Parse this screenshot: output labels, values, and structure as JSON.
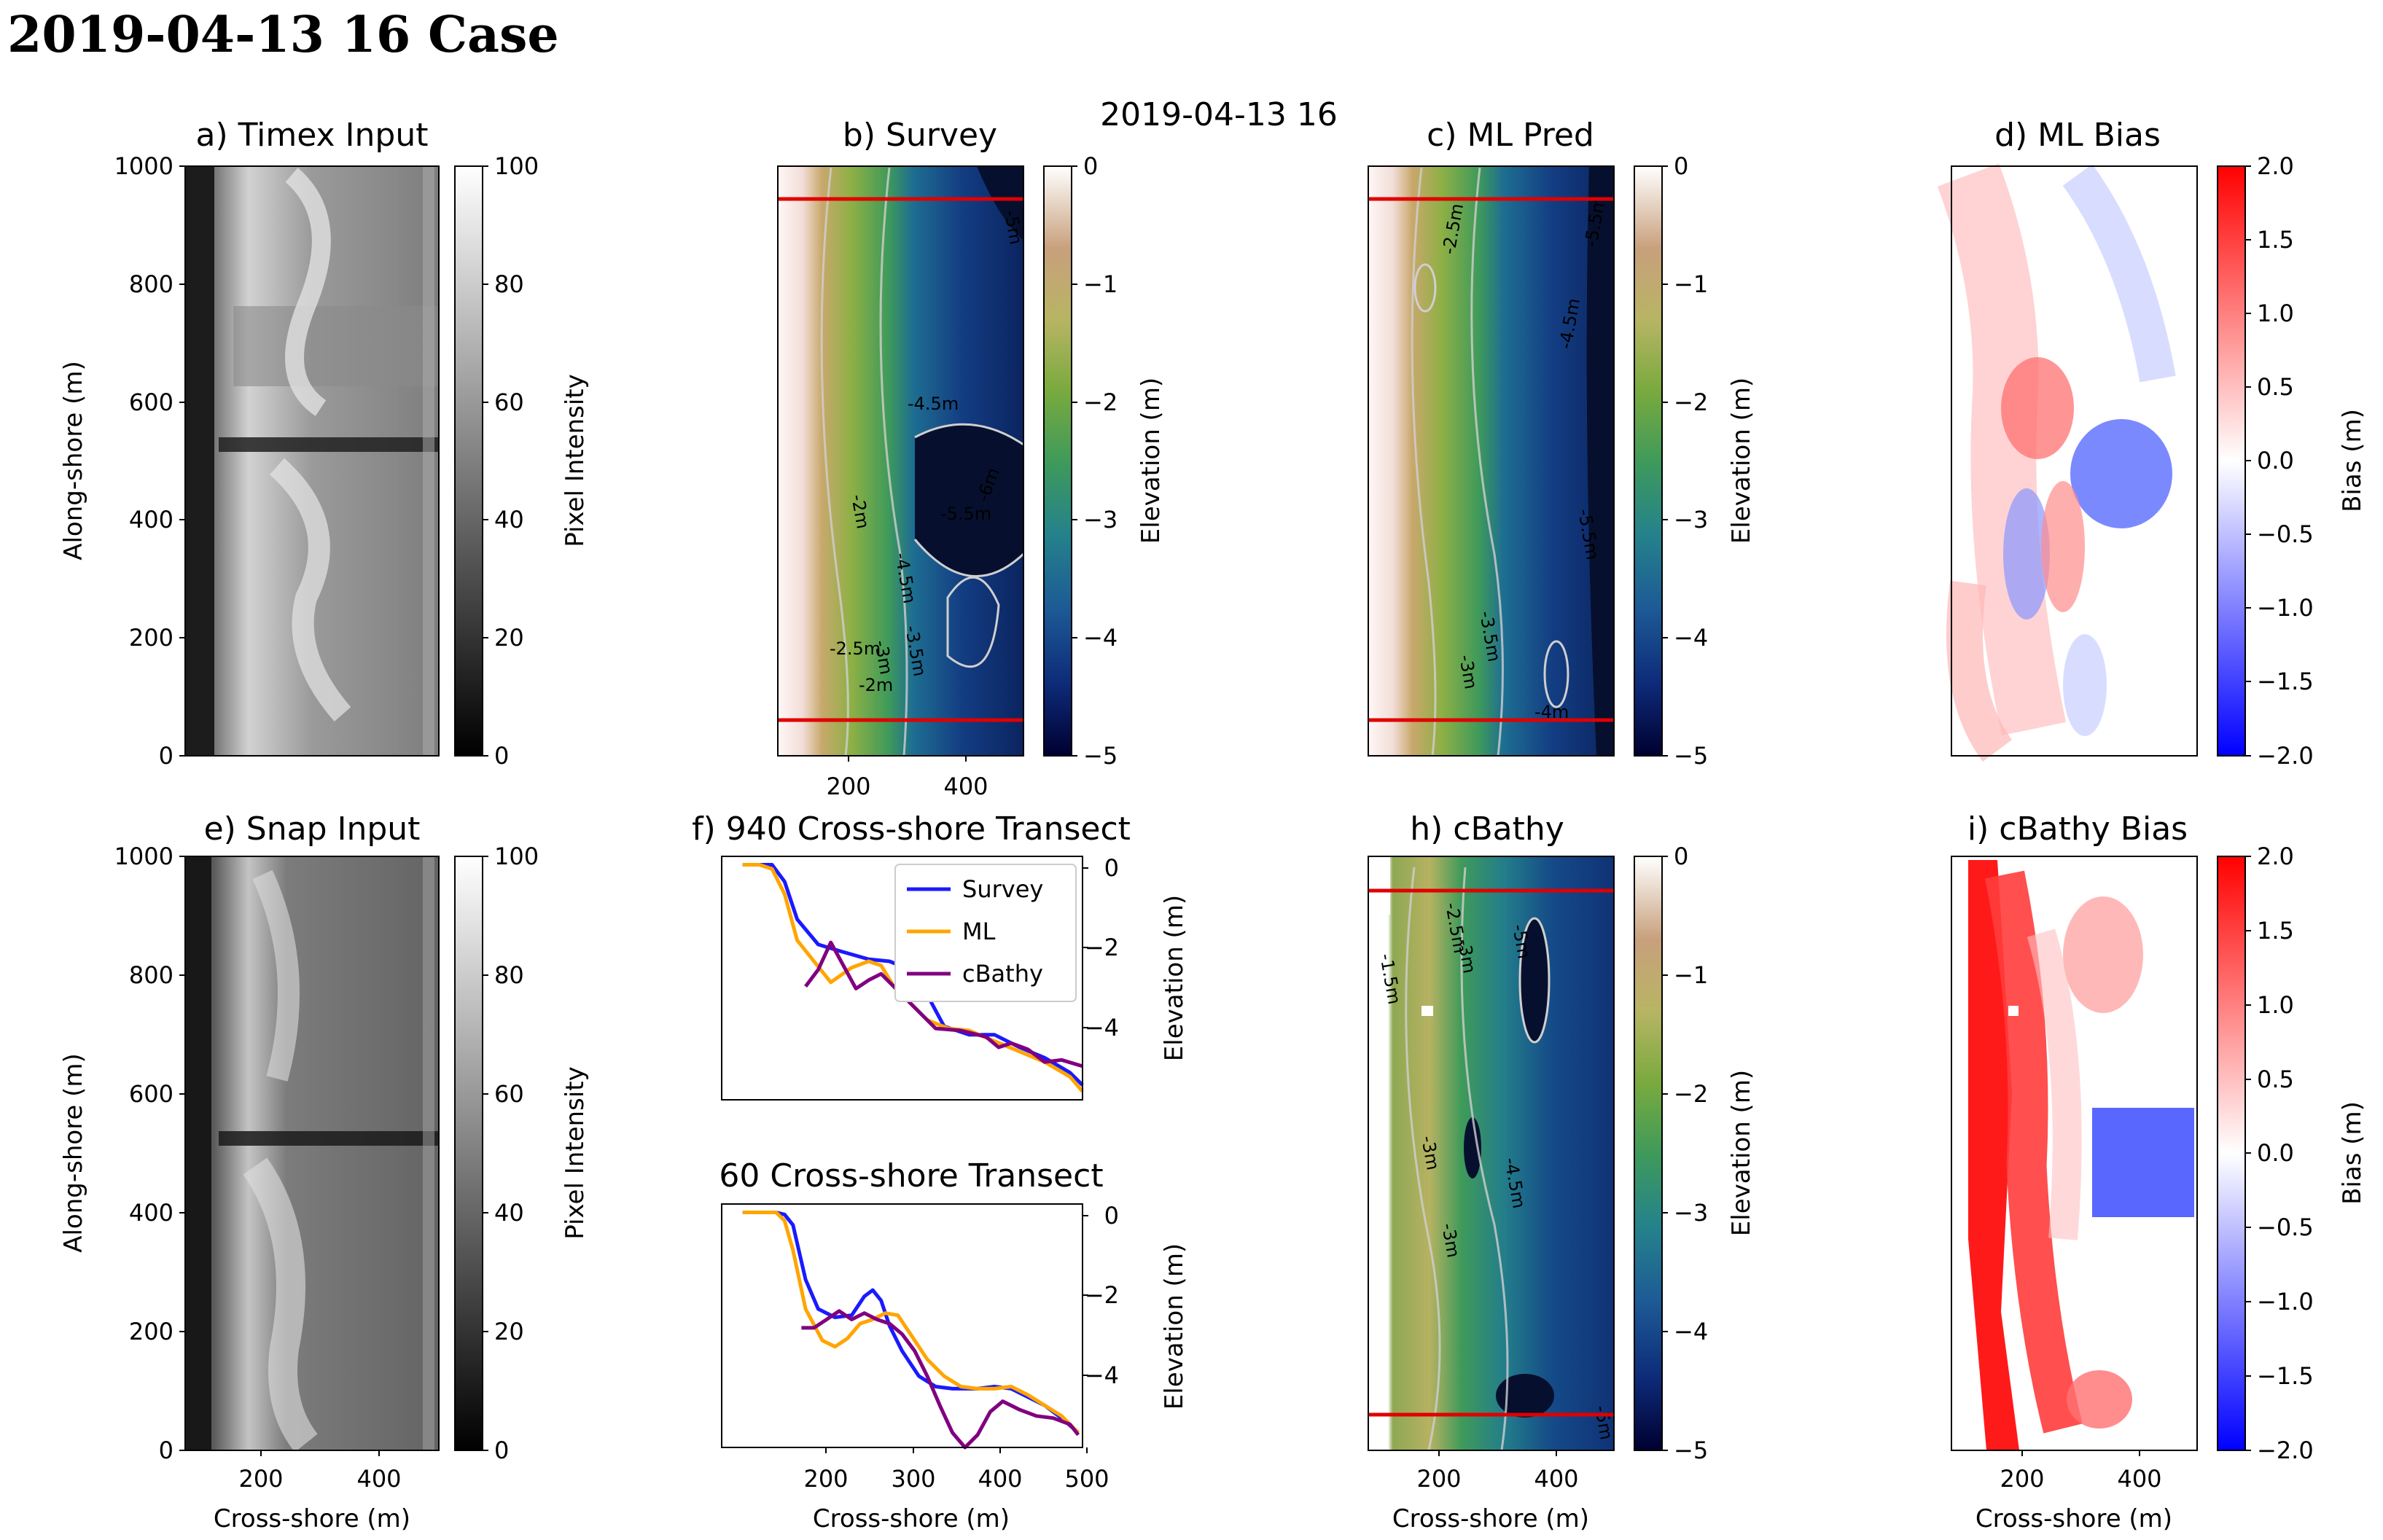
{
  "page_title": "2019-04-13 16 Case",
  "figure_suptitle": "2019-04-13 16",
  "colors": {
    "survey": "#1a1aff",
    "ml": "#ffa500",
    "cbathy": "#800080",
    "transect_marker": "#e00000",
    "bias_pos": "#ff0000",
    "bias_neg": "#0000ff"
  },
  "chart_data": [
    {
      "id": "a",
      "type": "heatmap",
      "title": "a) Timex Input",
      "xlabel": "",
      "ylabel": "Along-shore (m)",
      "yticks": [
        "0",
        "200",
        "400",
        "600",
        "800",
        "1000"
      ],
      "xticks": [],
      "ylim": [
        0,
        1000
      ],
      "colorbar": {
        "label": "Pixel Intensity",
        "cmap": "gray",
        "ticks": [
          "0",
          "20",
          "40",
          "60",
          "80",
          "100"
        ],
        "range": [
          0,
          100
        ]
      }
    },
    {
      "id": "b",
      "type": "heatmap",
      "title": "b) Survey",
      "xticks": [
        "200",
        "400"
      ],
      "xlim": [
        70,
        500
      ],
      "ylim": [
        0,
        1000
      ],
      "transect_lines_at": [
        940,
        60
      ],
      "contour_labels": [
        "-5m",
        "-4.5m",
        "-5.5m",
        "-6m",
        "-2m",
        "-4.5m",
        "-2.5m",
        "-2m",
        "-3m",
        "-3.5m"
      ],
      "colorbar": {
        "label": "Elevation (m)",
        "cmap": "gist_earth",
        "ticks": [
          "0",
          "−1",
          "−2",
          "−3",
          "−4",
          "−5"
        ],
        "range": [
          -5,
          0
        ]
      }
    },
    {
      "id": "c",
      "type": "heatmap",
      "title": "c) ML Pred",
      "xlim": [
        70,
        500
      ],
      "ylim": [
        0,
        1000
      ],
      "transect_lines_at": [
        940,
        60
      ],
      "contour_labels": [
        "-2.5m",
        "-5.5m",
        "-4.5m",
        "-5.5m",
        "-3.5m",
        "-3m",
        "-4m"
      ],
      "colorbar": {
        "label": "Elevation (m)",
        "cmap": "gist_earth",
        "ticks": [
          "0",
          "−1",
          "−2",
          "−3",
          "−4",
          "−5"
        ],
        "range": [
          -5,
          0
        ]
      }
    },
    {
      "id": "d",
      "type": "heatmap",
      "title": "d) ML Bias",
      "xlim": [
        70,
        500
      ],
      "ylim": [
        0,
        1000
      ],
      "colorbar": {
        "label": "Bias (m)",
        "cmap": "bwr",
        "ticks": [
          "2.0",
          "1.5",
          "1.0",
          "0.5",
          "0.0",
          "−0.5",
          "−1.0",
          "−1.5",
          "−2.0"
        ],
        "range": [
          -2,
          2
        ]
      }
    },
    {
      "id": "e",
      "type": "heatmap",
      "title": "e) Snap Input",
      "xlabel": "Cross-shore (m)",
      "ylabel": "Along-shore (m)",
      "xticks": [
        "200",
        "400"
      ],
      "yticks": [
        "0",
        "200",
        "400",
        "600",
        "800",
        "1000"
      ],
      "xlim": [
        70,
        500
      ],
      "ylim": [
        0,
        1000
      ],
      "colorbar": {
        "label": "Pixel Intensity",
        "cmap": "gray",
        "ticks": [
          "0",
          "20",
          "40",
          "60",
          "80",
          "100"
        ],
        "range": [
          0,
          100
        ]
      }
    },
    {
      "id": "f1",
      "type": "line",
      "title": "f) 940 Cross-shore Transect",
      "ylabel": "Elevation (m)",
      "yticks": [
        "0",
        "−2",
        "−4"
      ],
      "xlim": [
        75,
        505
      ],
      "ylim": [
        -5.6,
        0.2
      ],
      "legend": "top-right",
      "series": [
        {
          "name": "Survey",
          "x": [
            100,
            120,
            135,
            150,
            165,
            190,
            215,
            250,
            275,
            300,
            320,
            340,
            370,
            400,
            430,
            460,
            490,
            505
          ],
          "y": [
            0,
            0,
            0,
            -0.4,
            -1.3,
            -1.9,
            -2.05,
            -2.25,
            -2.3,
            -2.5,
            -3.1,
            -3.85,
            -4.05,
            -4.05,
            -4.35,
            -4.6,
            -4.95,
            -5.25
          ]
        },
        {
          "name": "ML",
          "x": [
            100,
            120,
            135,
            150,
            165,
            185,
            205,
            230,
            250,
            265,
            280,
            300,
            320,
            345,
            370,
            400,
            430,
            460,
            490,
            505
          ],
          "y": [
            0,
            0,
            -0.1,
            -0.7,
            -1.8,
            -2.3,
            -2.8,
            -2.45,
            -2.3,
            -2.4,
            -2.9,
            -3.3,
            -3.7,
            -3.9,
            -3.95,
            -4.2,
            -4.45,
            -4.7,
            -5.05,
            -5.4
          ]
        },
        {
          "name": "cBathy",
          "x": [
            175,
            190,
            205,
            220,
            235,
            250,
            265,
            280,
            300,
            330,
            360,
            390,
            405,
            420,
            440,
            460,
            480,
            505
          ],
          "y": [
            -2.9,
            -2.5,
            -1.85,
            -2.4,
            -2.95,
            -2.75,
            -2.6,
            -2.9,
            -3.3,
            -3.9,
            -3.95,
            -4.1,
            -4.35,
            -4.25,
            -4.4,
            -4.7,
            -4.65,
            -4.8
          ]
        }
      ]
    },
    {
      "id": "f2",
      "type": "line",
      "title": "60 Cross-shore Transect",
      "xlabel": "Cross-shore (m)",
      "ylabel": "Elevation (m)",
      "xticks": [
        "200",
        "300",
        "400",
        "500"
      ],
      "yticks": [
        "0",
        "−2",
        "−4"
      ],
      "xlim": [
        75,
        505
      ],
      "ylim": [
        -5.6,
        0.2
      ],
      "series": [
        {
          "name": "Survey",
          "x": [
            100,
            120,
            140,
            150,
            160,
            175,
            190,
            210,
            230,
            245,
            255,
            265,
            275,
            290,
            310,
            330,
            350,
            380,
            400,
            420,
            440,
            460,
            480,
            500
          ],
          "y": [
            0,
            0,
            0,
            -0.05,
            -0.3,
            -1.6,
            -2.3,
            -2.5,
            -2.45,
            -2.0,
            -1.85,
            -2.1,
            -2.7,
            -3.3,
            -3.9,
            -4.15,
            -4.2,
            -4.2,
            -4.15,
            -4.2,
            -4.4,
            -4.6,
            -4.9,
            -5.25
          ]
        },
        {
          "name": "ML",
          "x": [
            100,
            120,
            140,
            150,
            160,
            175,
            195,
            210,
            225,
            240,
            255,
            270,
            285,
            300,
            320,
            340,
            360,
            380,
            400,
            420,
            440,
            460,
            480,
            500
          ],
          "y": [
            0,
            0,
            0,
            -0.2,
            -0.9,
            -2.3,
            -3.05,
            -3.2,
            -3.0,
            -2.65,
            -2.55,
            -2.4,
            -2.45,
            -2.9,
            -3.5,
            -3.9,
            -4.15,
            -4.2,
            -4.2,
            -4.15,
            -4.35,
            -4.6,
            -4.85,
            -5.25
          ]
        },
        {
          "name": "cBathy",
          "x": [
            170,
            185,
            200,
            215,
            230,
            245,
            260,
            275,
            290,
            305,
            320,
            335,
            350,
            365,
            380,
            395,
            410,
            430,
            450,
            470,
            490,
            500
          ],
          "y": [
            -2.75,
            -2.75,
            -2.55,
            -2.35,
            -2.55,
            -2.4,
            -2.55,
            -2.65,
            -2.9,
            -3.3,
            -3.9,
            -4.6,
            -5.25,
            -5.6,
            -5.3,
            -4.75,
            -4.5,
            -4.7,
            -4.85,
            -4.9,
            -5.05,
            -5.3
          ]
        }
      ]
    },
    {
      "id": "h",
      "type": "heatmap",
      "title": "h) cBathy",
      "xlabel": "Cross-shore (m)",
      "xticks": [
        "200",
        "400"
      ],
      "xlim": [
        70,
        500
      ],
      "ylim": [
        0,
        1000
      ],
      "transect_lines_at": [
        940,
        60
      ],
      "contour_labels": [
        "-1.5m",
        "-2.5m",
        "-3m",
        "-5m",
        "-3m",
        "-4.5m",
        "-3m",
        "-5m"
      ],
      "colorbar": {
        "label": "Elevation (m)",
        "cmap": "gist_earth",
        "ticks": [
          "0",
          "−1",
          "−2",
          "−3",
          "−4",
          "−5"
        ],
        "range": [
          -5,
          0
        ]
      }
    },
    {
      "id": "i",
      "type": "heatmap",
      "title": "i) cBathy Bias",
      "xlabel": "Cross-shore (m)",
      "xticks": [
        "200",
        "400"
      ],
      "xlim": [
        70,
        500
      ],
      "ylim": [
        0,
        1000
      ],
      "colorbar": {
        "label": "Bias (m)",
        "cmap": "bwr",
        "ticks": [
          "2.0",
          "1.5",
          "1.0",
          "0.5",
          "0.0",
          "−0.5",
          "−1.0",
          "−1.5",
          "−2.0"
        ],
        "range": [
          -2,
          2
        ]
      }
    }
  ]
}
